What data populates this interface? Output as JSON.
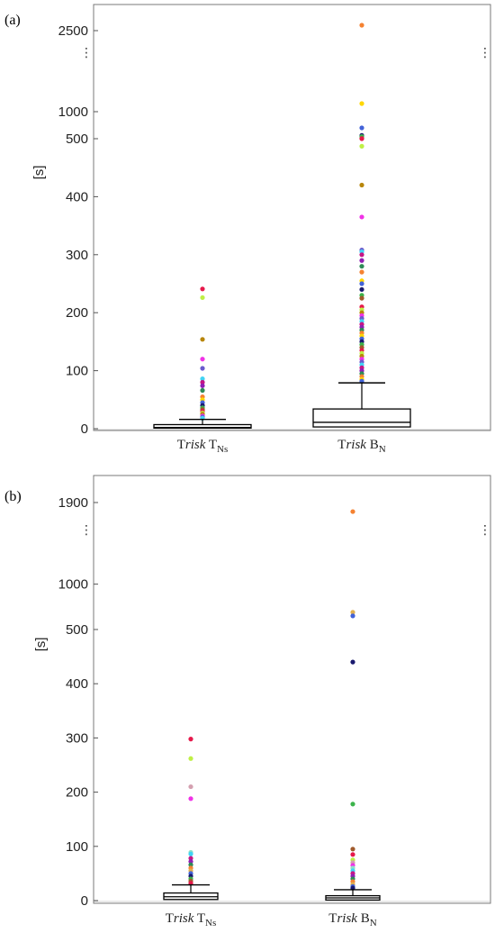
{
  "chart_data": [
    {
      "type": "box",
      "panel_label": "(a)",
      "ylabel": "[s]",
      "axis_break": true,
      "ylim": [
        0,
        2700
      ],
      "yticks": [
        {
          "value": 0,
          "label": "0"
        },
        {
          "value": 100,
          "label": "100"
        },
        {
          "value": 200,
          "label": "200"
        },
        {
          "value": 300,
          "label": "300"
        },
        {
          "value": 400,
          "label": "400"
        },
        {
          "value": 500,
          "label": "500"
        },
        {
          "value": 1000,
          "label": "1000"
        },
        {
          "value": 2500,
          "label": "2500"
        }
      ],
      "categories": [
        {
          "main": "T",
          "italic": "risk",
          "sub_prefix": " T",
          "sub": "Ns"
        },
        {
          "main": "T",
          "italic": "risk",
          "sub_prefix": " B",
          "sub": "N"
        }
      ],
      "boxes": [
        {
          "q1": 1,
          "median": 2,
          "q3": 7,
          "whisker_low": 0,
          "whisker_high": 16,
          "outliers": [
            241,
            226,
            154,
            120,
            104,
            86,
            80,
            74,
            66,
            55,
            50,
            45,
            40,
            36,
            33,
            30,
            27,
            25,
            22,
            20,
            18
          ]
        },
        {
          "q1": 3,
          "median": 11,
          "q3": 34,
          "whisker_low": 0,
          "whisker_high": 79,
          "outliers": [
            2600,
            1150,
            700,
            560,
            540,
            505,
            500,
            487,
            420,
            365,
            308,
            305,
            300,
            290,
            280,
            270,
            255,
            250,
            240,
            230,
            225,
            210,
            205,
            200,
            195,
            190,
            185,
            180,
            175,
            170,
            165,
            160,
            155,
            150,
            145,
            140,
            135,
            130,
            125,
            120,
            115,
            110,
            105,
            100,
            95,
            90,
            85,
            82
          ]
        }
      ],
      "point_colors": [
        "#e6194b",
        "#3cb44b",
        "#4363d8",
        "#f58231",
        "#911eb4",
        "#42d4f4",
        "#f032e6",
        "#bfef45",
        "#a05a2c",
        "#1a1a6e",
        "#ffd700",
        "#2e8b57",
        "#c71585",
        "#6a5acd",
        "#b8860b"
      ]
    },
    {
      "type": "box",
      "panel_label": "(b)",
      "ylabel": "[s]",
      "axis_break": true,
      "ylim": [
        0,
        2000
      ],
      "yticks": [
        {
          "value": 0,
          "label": "0"
        },
        {
          "value": 100,
          "label": "100"
        },
        {
          "value": 200,
          "label": "200"
        },
        {
          "value": 300,
          "label": "300"
        },
        {
          "value": 400,
          "label": "400"
        },
        {
          "value": 500,
          "label": "500"
        },
        {
          "value": 1000,
          "label": "1000"
        },
        {
          "value": 1900,
          "label": "1900"
        }
      ],
      "categories": [
        {
          "main": "T",
          "italic": "risk",
          "sub_prefix": " T",
          "sub": "Ns"
        },
        {
          "main": "T",
          "italic": "risk",
          "sub_prefix": " B",
          "sub": "N"
        }
      ],
      "boxes": [
        {
          "q1": 2,
          "median": 7,
          "q3": 14,
          "whisker_low": 0,
          "whisker_high": 29,
          "outliers": [
            298,
            262,
            210,
            188,
            89,
            86,
            78,
            72,
            66,
            60,
            55,
            50,
            45,
            40,
            36,
            32
          ]
        },
        {
          "q1": 1,
          "median": 5,
          "q3": 9,
          "whisker_low": 0,
          "whisker_high": 20,
          "outliers": [
            1800,
            690,
            650,
            440,
            178,
            95,
            85,
            75,
            70,
            65,
            60,
            55,
            50,
            45,
            40,
            35,
            30,
            26,
            23
          ]
        }
      ],
      "point_colors": [
        "#e6194b",
        "#3cb44b",
        "#4363d8",
        "#f58231",
        "#911eb4",
        "#42d4f4",
        "#f032e6",
        "#bfef45",
        "#a05a2c",
        "#1a1a6e",
        "#e0b050",
        "#2e8b57",
        "#c71585",
        "#8fe0c8",
        "#d4a0b0"
      ]
    }
  ]
}
